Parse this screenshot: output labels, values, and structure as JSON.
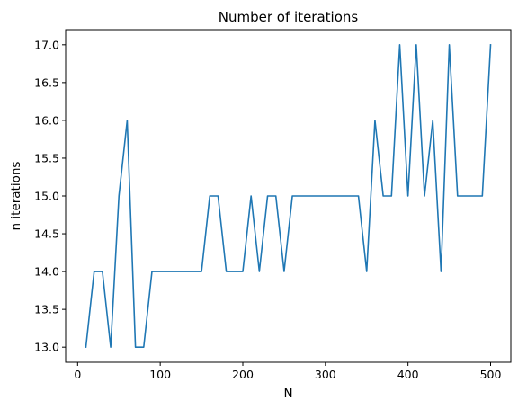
{
  "chart_data": {
    "type": "line",
    "title": "Number of iterations",
    "xlabel": "N",
    "ylabel": "n iterations",
    "xlim": [
      -14.5,
      524.5
    ],
    "ylim": [
      12.8,
      17.2
    ],
    "xticks": [
      0,
      100,
      200,
      300,
      400,
      500
    ],
    "xtick_labels": [
      "0",
      "100",
      "200",
      "300",
      "400",
      "500"
    ],
    "yticks": [
      13.0,
      13.5,
      14.0,
      14.5,
      15.0,
      15.5,
      16.0,
      16.5,
      17.0
    ],
    "ytick_labels": [
      "13.0",
      "13.5",
      "14.0",
      "14.5",
      "15.0",
      "15.5",
      "16.0",
      "16.5",
      "17.0"
    ],
    "grid": false,
    "series": [
      {
        "color": "#1f77b4",
        "x": [
          10,
          20,
          30,
          40,
          50,
          60,
          70,
          80,
          90,
          100,
          110,
          120,
          130,
          140,
          150,
          160,
          170,
          180,
          190,
          200,
          210,
          220,
          230,
          240,
          250,
          260,
          270,
          280,
          290,
          300,
          310,
          320,
          330,
          340,
          350,
          360,
          370,
          380,
          390,
          400,
          410,
          420,
          430,
          440,
          450,
          460,
          470,
          480,
          490,
          500
        ],
        "y": [
          13,
          14,
          14,
          13,
          15,
          16,
          13,
          13,
          14,
          14,
          14,
          14,
          14,
          14,
          14,
          15,
          15,
          14,
          14,
          14,
          15,
          14,
          15,
          15,
          14,
          15,
          15,
          15,
          15,
          15,
          15,
          15,
          15,
          15,
          14,
          16,
          15,
          15,
          17,
          15,
          17,
          15,
          16,
          14,
          17,
          15,
          15,
          15,
          15,
          17
        ]
      }
    ]
  }
}
